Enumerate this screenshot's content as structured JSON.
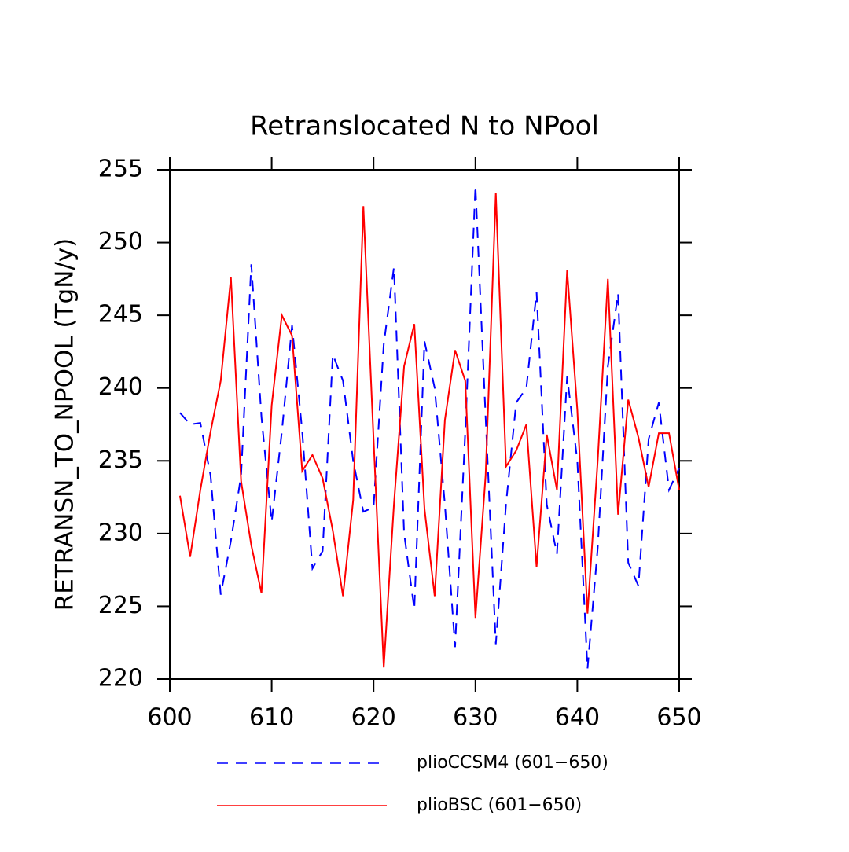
{
  "chart_data": {
    "type": "line",
    "title": "Retranslocated N to NPool",
    "y_label": "RETRANSN_TO_NPOOL  (TgN/y)",
    "x": [
      601,
      602,
      603,
      604,
      605,
      606,
      607,
      608,
      609,
      610,
      611,
      612,
      613,
      614,
      615,
      616,
      617,
      618,
      619,
      620,
      621,
      622,
      623,
      624,
      625,
      626,
      627,
      628,
      629,
      630,
      631,
      632,
      633,
      634,
      635,
      636,
      637,
      638,
      639,
      640,
      641,
      642,
      643,
      644,
      645,
      646,
      647,
      648,
      649,
      650
    ],
    "series": [
      {
        "name": "plioCCSM4 (601−650)",
        "color": "#0000ff",
        "dash": true,
        "values": [
          238.3,
          237.5,
          237.6,
          234,
          225.8,
          229.5,
          234,
          248.5,
          238,
          230.8,
          237,
          244.3,
          237,
          227.6,
          228.8,
          242.3,
          240.5,
          235,
          231.5,
          231.8,
          243,
          248.3,
          230,
          224.8,
          243.2,
          240,
          232,
          222.2,
          237,
          253.9,
          238,
          222.4,
          232,
          239,
          240,
          246.6,
          232,
          228.6,
          240.8,
          235,
          220.7,
          229,
          241.5,
          246.5,
          228,
          226.4,
          236.5,
          239,
          233,
          234.5
        ]
      },
      {
        "name": "plioBSC (601−650)",
        "color": "#ff0000",
        "dash": false,
        "values": [
          232.6,
          228.4,
          233,
          237,
          240.5,
          247.6,
          233.6,
          229.2,
          225.9,
          238.8,
          245,
          243.6,
          234.3,
          235.4,
          233.8,
          230.2,
          225.7,
          232.3,
          252.5,
          236.5,
          220.8,
          232,
          241.5,
          244.4,
          231.7,
          225.7,
          237.8,
          242.6,
          240.5,
          224.2,
          234,
          253.4,
          234.6,
          235.7,
          237.5,
          227.7,
          236.8,
          233,
          248.1,
          238.5,
          224.5,
          235,
          247.5,
          231.3,
          239.2,
          236.6,
          233.2,
          236.9,
          236.9,
          233
        ]
      }
    ],
    "xlim": [
      600,
      650
    ],
    "xticks": [
      600,
      610,
      620,
      630,
      640,
      650
    ],
    "ylim": [
      220,
      255
    ],
    "yticks": [
      220,
      225,
      230,
      235,
      240,
      245,
      250,
      255
    ]
  }
}
